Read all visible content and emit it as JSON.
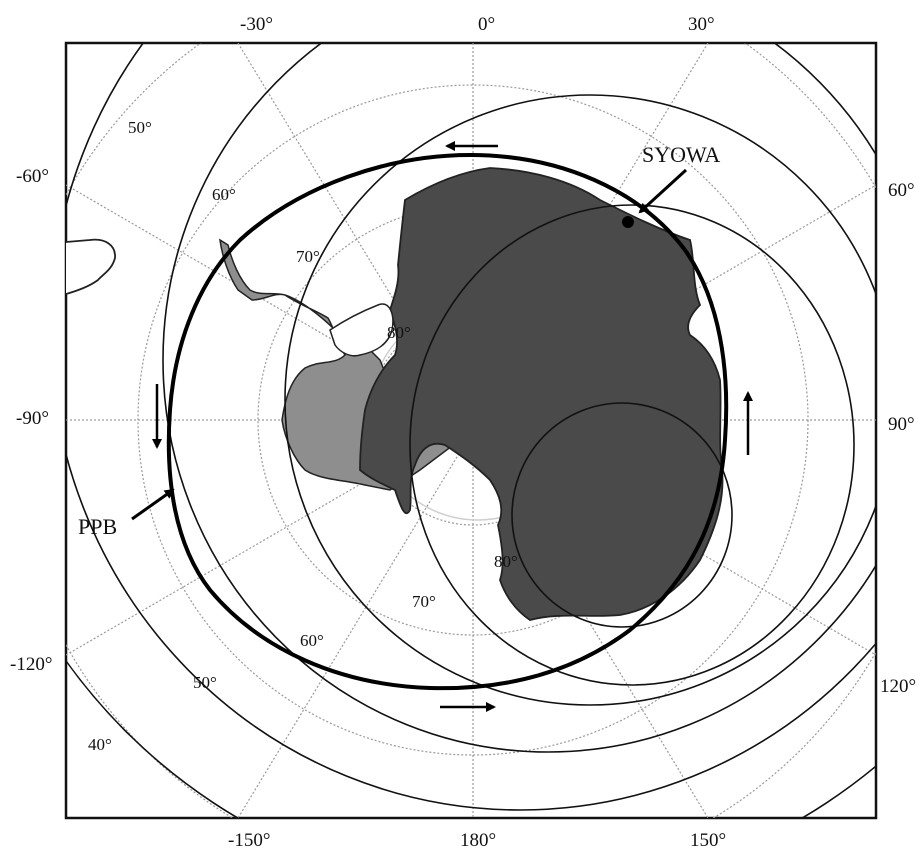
{
  "map": {
    "top_longitudes": [
      "-30°",
      "0°",
      "30°"
    ],
    "bottom_longitudes": [
      "-150°",
      "180°",
      "150°"
    ],
    "left_latitudes": [
      "-60°",
      "-90°",
      "-120°"
    ],
    "right_latitudes": [
      "60°",
      "90°",
      "120°"
    ],
    "geo_lat_labels": [
      "50°",
      "60°",
      "70°",
      "80°"
    ],
    "mag_lat_labels": [
      "40°",
      "50°",
      "60°",
      "70°",
      "80°"
    ],
    "station_label": "SYOWA",
    "boundary_label": "PPB",
    "colors": {
      "frame": "#111111",
      "grid": "#aaaaaa",
      "continent_dark": "#4a4a4a",
      "continent_light": "#8e8e8e",
      "boundary": "#000000"
    },
    "icons": [
      "arrow-left-icon",
      "arrow-right-icon",
      "arrow-up-icon",
      "arrow-down-icon",
      "pointer-arrow-icon",
      "station-dot-icon"
    ]
  }
}
